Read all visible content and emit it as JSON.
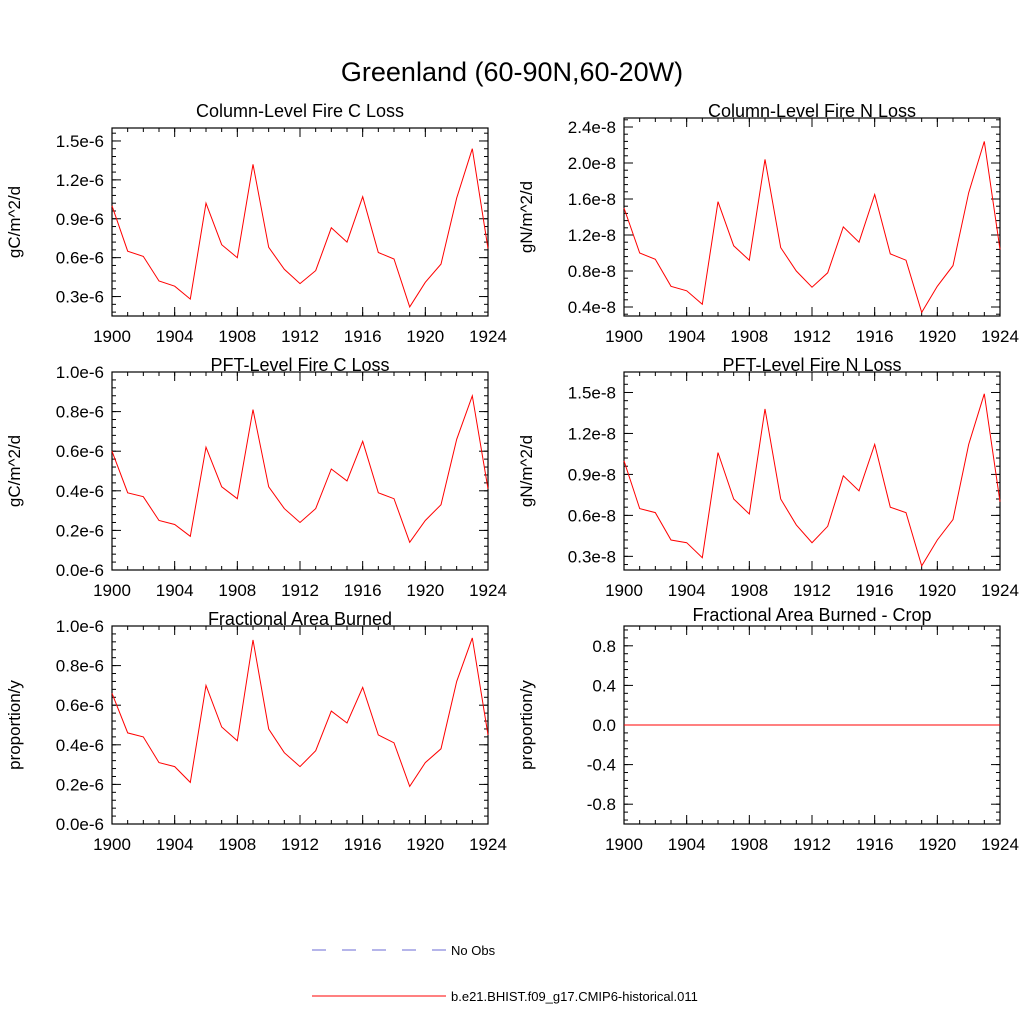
{
  "page": {
    "title": "Greenland (60-90N,60-20W)"
  },
  "legend": {
    "obs_label": "No Obs",
    "model_label": "b.e21.BHIST.f09_g17.CMIP6-historical.011",
    "obs_color": "#6b6bd6",
    "model_color": "#ff0000"
  },
  "chart_data": [
    {
      "type": "line",
      "title": "Column-Level Fire C Loss",
      "ylabel": "gC/m^2/d",
      "xlim": [
        1900,
        1924
      ],
      "ylim": [
        1.5e-07,
        1.6e-06
      ],
      "xticks": [
        1900,
        1904,
        1908,
        1912,
        1916,
        1920,
        1924
      ],
      "xtick_labels": [
        "1900",
        "1904",
        "1908",
        "1912",
        "1916",
        "1920",
        "1924"
      ],
      "yticks": [
        3e-07,
        6e-07,
        9e-07,
        1.2e-06,
        1.5e-06
      ],
      "ytick_labels": [
        "0.3e-6",
        "0.6e-6",
        "0.9e-6",
        "1.2e-6",
        "1.5e-6"
      ],
      "color": "#ff0000",
      "series": [
        {
          "name": "b.e21.BHIST.f09_g17.CMIP6-historical.011",
          "x": [
            1900,
            1901,
            1902,
            1903,
            1904,
            1905,
            1906,
            1907,
            1908,
            1909,
            1910,
            1911,
            1912,
            1913,
            1914,
            1915,
            1916,
            1917,
            1918,
            1919,
            1920,
            1921,
            1922,
            1923,
            1924
          ],
          "y": [
            1e-06,
            6.5e-07,
            6.1e-07,
            4.2e-07,
            3.8e-07,
            2.8e-07,
            1.02e-06,
            7e-07,
            6e-07,
            1.32e-06,
            6.8e-07,
            5.1e-07,
            4e-07,
            5e-07,
            8.3e-07,
            7.2e-07,
            1.07e-06,
            6.4e-07,
            5.9e-07,
            2.2e-07,
            4.1e-07,
            5.5e-07,
            1.06e-06,
            1.44e-06,
            6.7e-07
          ]
        }
      ]
    },
    {
      "type": "line",
      "title": "Column-Level Fire N Loss",
      "ylabel": "gN/m^2/d",
      "xlim": [
        1900,
        1924
      ],
      "ylim": [
        3e-09,
        2.5e-08
      ],
      "xticks": [
        1900,
        1904,
        1908,
        1912,
        1916,
        1920,
        1924
      ],
      "xtick_labels": [
        "1900",
        "1904",
        "1908",
        "1912",
        "1916",
        "1920",
        "1924"
      ],
      "yticks": [
        4e-09,
        8e-09,
        1.2e-08,
        1.6e-08,
        2e-08,
        2.4e-08
      ],
      "ytick_labels": [
        "0.4e-8",
        "0.8e-8",
        "1.2e-8",
        "1.6e-8",
        "2.0e-8",
        "2.4e-8"
      ],
      "color": "#ff0000",
      "series": [
        {
          "name": "b.e21.BHIST.f09_g17.CMIP6-historical.011",
          "x": [
            1900,
            1901,
            1902,
            1903,
            1904,
            1905,
            1906,
            1907,
            1908,
            1909,
            1910,
            1911,
            1912,
            1913,
            1914,
            1915,
            1916,
            1917,
            1918,
            1919,
            1920,
            1921,
            1922,
            1923,
            1924
          ],
          "y": [
            1.5e-08,
            1e-08,
            9.3e-09,
            6.3e-09,
            5.8e-09,
            4.3e-09,
            1.57e-08,
            1.08e-08,
            9.2e-09,
            2.04e-08,
            1.06e-08,
            8e-09,
            6.2e-09,
            7.8e-09,
            1.29e-08,
            1.12e-08,
            1.65e-08,
            9.9e-09,
            9.2e-09,
            3.4e-09,
            6.3e-09,
            8.6e-09,
            1.67e-08,
            2.24e-08,
            1.04e-08
          ]
        }
      ]
    },
    {
      "type": "line",
      "title": "PFT-Level Fire C Loss",
      "ylabel": "gC/m^2/d",
      "xlim": [
        1900,
        1924
      ],
      "ylim": [
        0.0,
        1e-06
      ],
      "xticks": [
        1900,
        1904,
        1908,
        1912,
        1916,
        1920,
        1924
      ],
      "xtick_labels": [
        "1900",
        "1904",
        "1908",
        "1912",
        "1916",
        "1920",
        "1924"
      ],
      "yticks": [
        0.0,
        2e-07,
        4e-07,
        6e-07,
        8e-07,
        1e-06
      ],
      "ytick_labels": [
        "0.0e-6",
        "0.2e-6",
        "0.4e-6",
        "0.6e-6",
        "0.8e-6",
        "1.0e-6"
      ],
      "color": "#ff0000",
      "series": [
        {
          "name": "b.e21.BHIST.f09_g17.CMIP6-historical.011",
          "x": [
            1900,
            1901,
            1902,
            1903,
            1904,
            1905,
            1906,
            1907,
            1908,
            1909,
            1910,
            1911,
            1912,
            1913,
            1914,
            1915,
            1916,
            1917,
            1918,
            1919,
            1920,
            1921,
            1922,
            1923,
            1924
          ],
          "y": [
            6e-07,
            3.9e-07,
            3.7e-07,
            2.5e-07,
            2.3e-07,
            1.7e-07,
            6.2e-07,
            4.2e-07,
            3.6e-07,
            8.1e-07,
            4.2e-07,
            3.1e-07,
            2.4e-07,
            3.1e-07,
            5.1e-07,
            4.5e-07,
            6.5e-07,
            3.9e-07,
            3.6e-07,
            1.4e-07,
            2.5e-07,
            3.3e-07,
            6.6e-07,
            8.8e-07,
            4.1e-07
          ]
        }
      ]
    },
    {
      "type": "line",
      "title": "PFT-Level Fire N Loss",
      "ylabel": "gN/m^2/d",
      "xlim": [
        1900,
        1924
      ],
      "ylim": [
        2e-09,
        1.65e-08
      ],
      "xticks": [
        1900,
        1904,
        1908,
        1912,
        1916,
        1920,
        1924
      ],
      "xtick_labels": [
        "1900",
        "1904",
        "1908",
        "1912",
        "1916",
        "1920",
        "1924"
      ],
      "yticks": [
        3e-09,
        6e-09,
        9e-09,
        1.2e-08,
        1.5e-08
      ],
      "ytick_labels": [
        "0.3e-8",
        "0.6e-8",
        "0.9e-8",
        "1.2e-8",
        "1.5e-8"
      ],
      "color": "#ff0000",
      "series": [
        {
          "name": "b.e21.BHIST.f09_g17.CMIP6-historical.011",
          "x": [
            1900,
            1901,
            1902,
            1903,
            1904,
            1905,
            1906,
            1907,
            1908,
            1909,
            1910,
            1911,
            1912,
            1913,
            1914,
            1915,
            1916,
            1917,
            1918,
            1919,
            1920,
            1921,
            1922,
            1923,
            1924
          ],
          "y": [
            1e-08,
            6.5e-09,
            6.2e-09,
            4.2e-09,
            4e-09,
            2.9e-09,
            1.06e-08,
            7.2e-09,
            6.1e-09,
            1.38e-08,
            7.2e-09,
            5.3e-09,
            4e-09,
            5.2e-09,
            8.9e-09,
            7.8e-09,
            1.12e-08,
            6.6e-09,
            6.2e-09,
            2.3e-09,
            4.2e-09,
            5.7e-09,
            1.12e-08,
            1.49e-08,
            7e-09
          ]
        }
      ]
    },
    {
      "type": "line",
      "title": "Fractional Area Burned",
      "ylabel": "proportion/y",
      "xlim": [
        1900,
        1924
      ],
      "ylim": [
        0.0,
        1e-06
      ],
      "xticks": [
        1900,
        1904,
        1908,
        1912,
        1916,
        1920,
        1924
      ],
      "xtick_labels": [
        "1900",
        "1904",
        "1908",
        "1912",
        "1916",
        "1920",
        "1924"
      ],
      "yticks": [
        0.0,
        2e-07,
        4e-07,
        6e-07,
        8e-07,
        1e-06
      ],
      "ytick_labels": [
        "0.0e-6",
        "0.2e-6",
        "0.4e-6",
        "0.6e-6",
        "0.8e-6",
        "1.0e-6"
      ],
      "color": "#ff0000",
      "series": [
        {
          "name": "b.e21.BHIST.f09_g17.CMIP6-historical.011",
          "x": [
            1900,
            1901,
            1902,
            1903,
            1904,
            1905,
            1906,
            1907,
            1908,
            1909,
            1910,
            1911,
            1912,
            1913,
            1914,
            1915,
            1916,
            1917,
            1918,
            1919,
            1920,
            1921,
            1922,
            1923,
            1924
          ],
          "y": [
            6.6e-07,
            4.6e-07,
            4.4e-07,
            3.1e-07,
            2.9e-07,
            2.1e-07,
            7e-07,
            4.9e-07,
            4.2e-07,
            9.3e-07,
            4.8e-07,
            3.6e-07,
            2.9e-07,
            3.7e-07,
            5.7e-07,
            5.1e-07,
            6.9e-07,
            4.5e-07,
            4.1e-07,
            1.9e-07,
            3.1e-07,
            3.8e-07,
            7.2e-07,
            9.4e-07,
            4.5e-07
          ]
        }
      ]
    },
    {
      "type": "line",
      "title": "Fractional Area Burned - Crop",
      "ylabel": "proportion/y",
      "xlim": [
        1900,
        1924
      ],
      "ylim": [
        -1.0,
        1.0
      ],
      "xticks": [
        1900,
        1904,
        1908,
        1912,
        1916,
        1920,
        1924
      ],
      "xtick_labels": [
        "1900",
        "1904",
        "1908",
        "1912",
        "1916",
        "1920",
        "1924"
      ],
      "yticks": [
        -0.8,
        -0.4,
        0.0,
        0.4,
        0.8
      ],
      "ytick_labels": [
        "-0.8",
        "-0.4",
        "0.0",
        "0.4",
        "0.8"
      ],
      "color": "#ff0000",
      "series": [
        {
          "name": "b.e21.BHIST.f09_g17.CMIP6-historical.011",
          "x": [
            1900,
            1924
          ],
          "y": [
            0.0,
            0.0
          ]
        }
      ]
    }
  ]
}
